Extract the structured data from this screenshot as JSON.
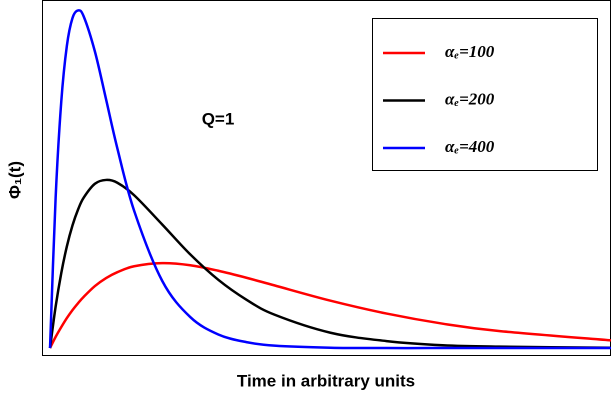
{
  "chart_data": {
    "type": "line",
    "xlabel": "Time in arbitrary units",
    "ylabel": "Φ₁(t)",
    "annotation": "Q=1",
    "x": [
      0,
      0.1,
      0.2,
      0.3,
      0.4,
      0.5,
      0.6,
      0.8,
      1.0,
      1.2,
      1.5,
      2,
      2.5,
      3,
      3.5,
      4,
      5,
      6,
      7,
      8,
      10
    ],
    "series": [
      {
        "name": "αₑ=100",
        "color": "#ff0000",
        "values": [
          0,
          0.032,
          0.06,
          0.086,
          0.109,
          0.129,
          0.147,
          0.178,
          0.201,
          0.218,
          0.235,
          0.244,
          0.238,
          0.222,
          0.202,
          0.18,
          0.136,
          0.099,
          0.07,
          0.049,
          0.022
        ]
      },
      {
        "name": "αₑ=200",
        "color": "#000000",
        "values": [
          0,
          0.119,
          0.215,
          0.292,
          0.352,
          0.398,
          0.432,
          0.472,
          0.483,
          0.475,
          0.439,
          0.355,
          0.269,
          0.196,
          0.139,
          0.096,
          0.044,
          0.02,
          0.008,
          0.004,
          0.001
        ]
      },
      {
        "name": "αₑ=400",
        "color": "#0000ff",
        "values": [
          0,
          0.432,
          0.707,
          0.868,
          0.948,
          0.97,
          0.953,
          0.852,
          0.714,
          0.574,
          0.394,
          0.193,
          0.089,
          0.039,
          0.017,
          0.007,
          0.001,
          0,
          0,
          0,
          0
        ]
      }
    ],
    "xlim": [
      -0.143,
      10
    ],
    "ylim": [
      -0.02,
      1.0
    ],
    "legend": "upper right"
  }
}
